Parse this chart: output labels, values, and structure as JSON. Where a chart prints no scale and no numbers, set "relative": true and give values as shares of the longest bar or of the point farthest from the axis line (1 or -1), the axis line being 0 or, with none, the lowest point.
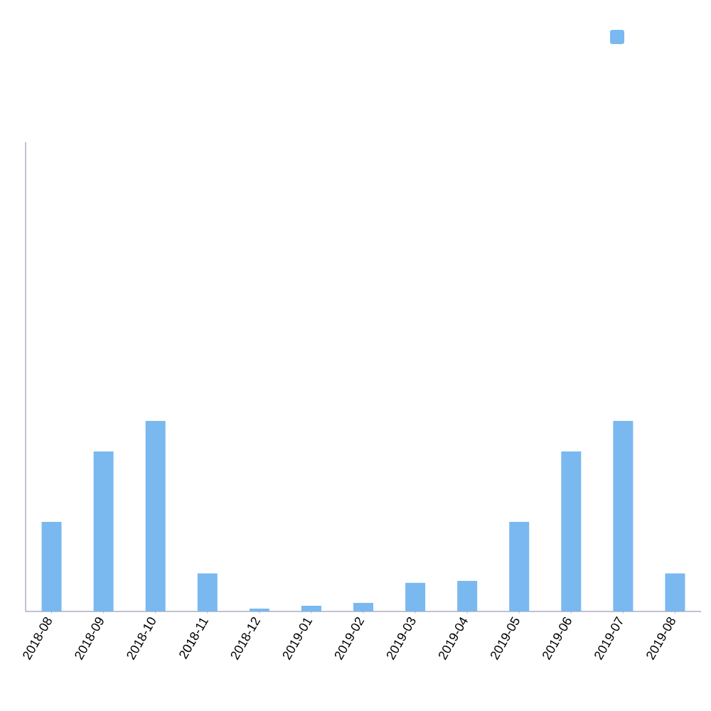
{
  "chart_data": {
    "type": "bar",
    "relative": true,
    "categories": [
      "2018-08",
      "2018-09",
      "2018-10",
      "2018-11",
      "2018-12",
      "2019-01",
      "2019-02",
      "2019-03",
      "2019-04",
      "2019-05",
      "2019-06",
      "2019-07",
      "2019-08"
    ],
    "series": [
      {
        "color": "#7ab8f0",
        "values": [
          0.47,
          0.84,
          1,
          0.2,
          0.015,
          0.03,
          0.045,
          0.15,
          0.16,
          0.47,
          0.84,
          1,
          0.2
        ]
      }
    ],
    "legend": false
  }
}
